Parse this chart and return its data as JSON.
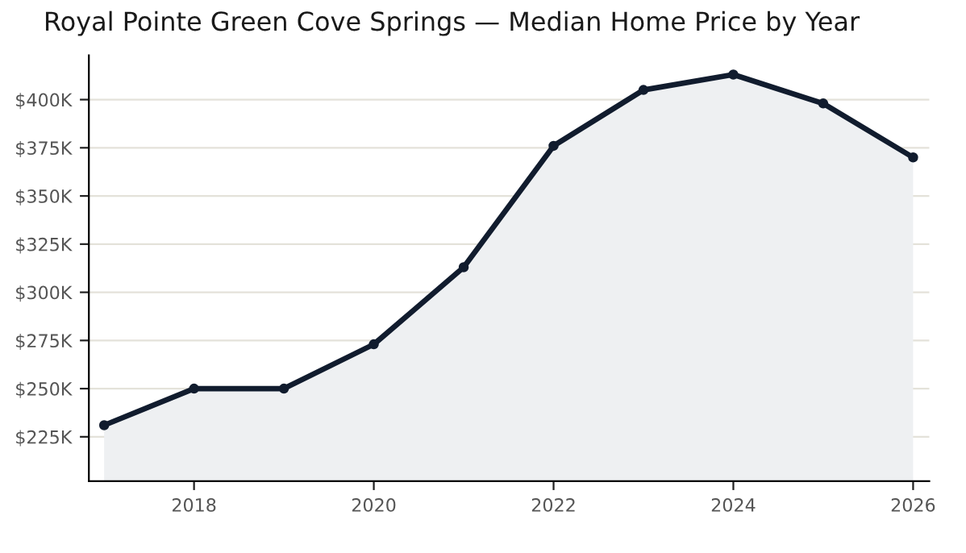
{
  "chart_data": {
    "type": "area",
    "title": "Royal Pointe Green Cove Springs — Median Home Price by Year",
    "x": [
      2017,
      2018,
      2019,
      2020,
      2021,
      2022,
      2023,
      2024,
      2025,
      2026
    ],
    "series": [
      {
        "color": "#111c2e",
        "values": [
          231,
          250,
          250,
          273,
          313,
          376,
          405,
          413,
          398,
          370
        ]
      }
    ],
    "xlim": [
      2016.83,
      2026.18
    ],
    "xticks": [
      2018,
      2020,
      2022,
      2024,
      2026
    ],
    "ylim": [
      202,
      423
    ],
    "yticks": [
      {
        "value": 225,
        "label": "$225K"
      },
      {
        "value": 250,
        "label": "$250K"
      },
      {
        "value": 275,
        "label": "$275K"
      },
      {
        "value": 300,
        "label": "$300K"
      },
      {
        "value": 325,
        "label": "$325K"
      },
      {
        "value": 350,
        "label": "$350K"
      },
      {
        "value": 375,
        "label": "$375K"
      },
      {
        "value": 400,
        "label": "$400K"
      }
    ],
    "grid": "y",
    "marker": "circle",
    "line_style": "solid",
    "legend": false
  }
}
